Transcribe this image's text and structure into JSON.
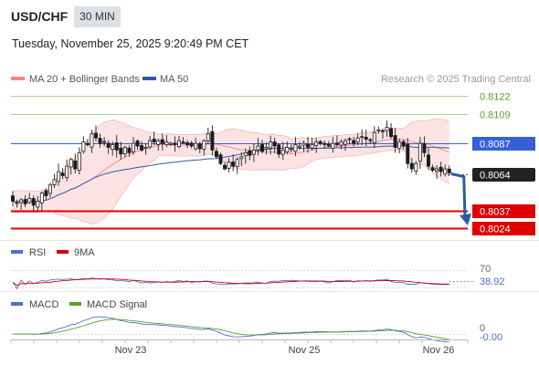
{
  "header": {
    "symbol": "USD/CHF",
    "timeframe": "30 MIN",
    "datetime": "Tuesday, November 25, 2025 9:20:49 PM CET"
  },
  "legend": {
    "bb_label": "MA 20 + Bollinger Bands",
    "ma50_label": "MA 50",
    "copyright": "Research © 2025 Trading Central",
    "bb_color": "#f28a8a",
    "ma50_color": "#2f5aa8"
  },
  "chart_data": [
    {
      "type": "candlestick",
      "title": "USD/CHF 30 MIN",
      "x_labels": [
        "Nov 23",
        "Nov 25",
        "Nov 26"
      ],
      "price_axis_labels": [
        "0.8122",
        "0.8109",
        "0.8087",
        "0.8064",
        "0.8037",
        "0.8024"
      ],
      "levels": [
        {
          "value": 0.8122,
          "label": "0.8122",
          "color": "#5aa02c",
          "kind": "resistance"
        },
        {
          "value": 0.8109,
          "label": "0.8109",
          "color": "#5aa02c",
          "kind": "resistance"
        },
        {
          "value": 0.8087,
          "label": "0.8087",
          "color": "#3560d8",
          "kind": "pivot"
        },
        {
          "value": 0.8064,
          "label": "0.8064",
          "color": "#222222",
          "kind": "last"
        },
        {
          "value": 0.8037,
          "label": "0.8037",
          "color": "#e00000",
          "kind": "support"
        },
        {
          "value": 0.8024,
          "label": "0.8024",
          "color": "#e00000",
          "kind": "support"
        }
      ],
      "close_series": [
        0.8044,
        0.8043,
        0.8045,
        0.8042,
        0.8046,
        0.8041,
        0.8044,
        0.805,
        0.8048,
        0.8056,
        0.806,
        0.8066,
        0.8063,
        0.807,
        0.8075,
        0.8068,
        0.808,
        0.8088,
        0.8086,
        0.8094,
        0.8091,
        0.8087,
        0.8088,
        0.8084,
        0.8086,
        0.8082,
        0.8079,
        0.8084,
        0.808,
        0.8087,
        0.8085,
        0.8082,
        0.8084,
        0.8089,
        0.8088,
        0.8089,
        0.8087,
        0.8088,
        0.8087,
        0.8086,
        0.8089,
        0.8088,
        0.8086,
        0.8085,
        0.8087,
        0.8083,
        0.8089,
        0.8094,
        0.8082,
        0.8077,
        0.8072,
        0.8068,
        0.8073,
        0.807,
        0.8075,
        0.8077,
        0.808,
        0.8078,
        0.8082,
        0.8085,
        0.8081,
        0.8084,
        0.8088,
        0.8085,
        0.8079,
        0.8082,
        0.8084,
        0.8083,
        0.8086,
        0.8085,
        0.8087,
        0.8084,
        0.8086,
        0.8088,
        0.8087,
        0.8086,
        0.8085,
        0.8087,
        0.8086,
        0.8088,
        0.8089,
        0.809,
        0.8087,
        0.8091,
        0.8092,
        0.809,
        0.8089,
        0.8095,
        0.8097,
        0.8096,
        0.8099,
        0.8092,
        0.8084,
        0.8088,
        0.8085,
        0.8072,
        0.8068,
        0.8072,
        0.8087,
        0.808,
        0.807,
        0.8067,
        0.8068,
        0.8066,
        0.8068,
        0.8065
      ],
      "ma50_color": "#2f5aa8",
      "bollinger_color": "#f28a8a",
      "forecast_arrow_to": 0.8024
    },
    {
      "type": "line",
      "title": "RSI",
      "series": [
        {
          "name": "RSI",
          "color": "#4a72d6"
        },
        {
          "name": "9MA",
          "color": "#d40000"
        }
      ],
      "axis_labels": [
        "70",
        "38.92"
      ],
      "last_value": "38.92"
    },
    {
      "type": "line",
      "title": "MACD",
      "series": [
        {
          "name": "MACD",
          "color": "#4a72d6"
        },
        {
          "name": "MACD Signal",
          "color": "#5aa02c"
        }
      ],
      "axis_labels": [
        "0",
        "-0.00"
      ],
      "last_value": "-0.00"
    }
  ]
}
